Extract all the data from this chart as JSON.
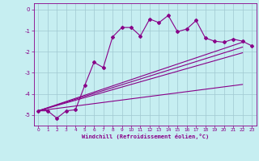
{
  "xlabel": "Windchill (Refroidissement éolien,°C)",
  "bg_color": "#c6eef1",
  "grid_color": "#a0c8d0",
  "line_color": "#880088",
  "xlim": [
    -0.5,
    23.5
  ],
  "ylim": [
    -5.5,
    0.3
  ],
  "xticks": [
    0,
    1,
    2,
    3,
    4,
    5,
    6,
    7,
    8,
    9,
    10,
    11,
    12,
    13,
    14,
    15,
    16,
    17,
    18,
    19,
    20,
    21,
    22,
    23
  ],
  "yticks": [
    0,
    -1,
    -2,
    -3,
    -4,
    -5
  ],
  "jagged_x": [
    0,
    1,
    2,
    3,
    4,
    5,
    6,
    7,
    8,
    9,
    10,
    11,
    12,
    13,
    14,
    15,
    16,
    17,
    18,
    19,
    20,
    21,
    22,
    23
  ],
  "jagged_y": [
    -4.8,
    -4.8,
    -5.15,
    -4.8,
    -4.75,
    -3.6,
    -2.5,
    -2.75,
    -1.3,
    -0.85,
    -0.85,
    -1.25,
    -0.45,
    -0.62,
    -0.28,
    -1.05,
    -0.92,
    -0.52,
    -1.35,
    -1.5,
    -1.55,
    -1.4,
    -1.5,
    -1.72
  ],
  "line1_x": [
    0,
    22
  ],
  "line1_y": [
    -4.8,
    -1.55
  ],
  "line2_x": [
    0,
    22
  ],
  "line2_y": [
    -4.8,
    -1.78
  ],
  "line3_x": [
    0,
    22
  ],
  "line3_y": [
    -4.8,
    -2.05
  ],
  "line4_x": [
    0,
    22
  ],
  "line4_y": [
    -4.8,
    -3.55
  ]
}
